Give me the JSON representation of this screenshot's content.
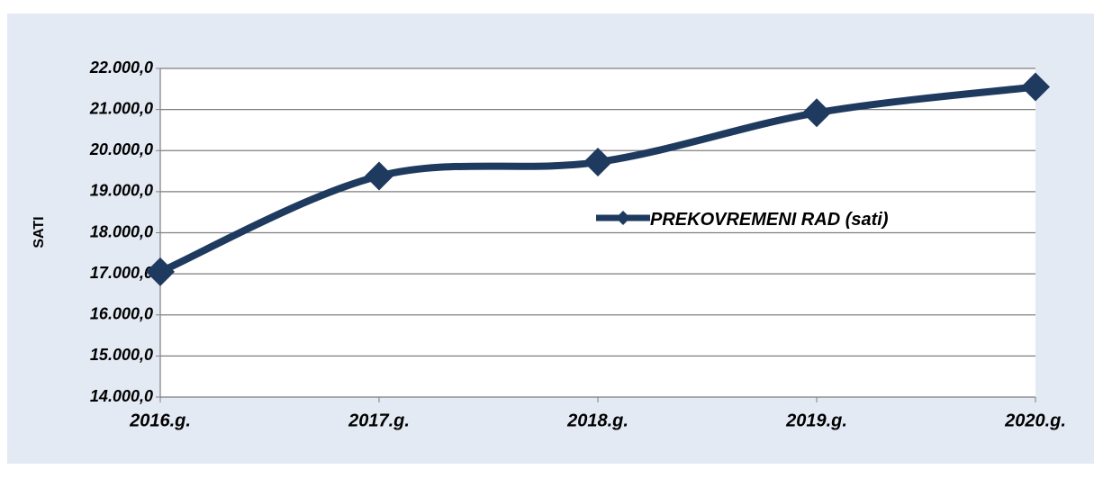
{
  "chart_data": {
    "type": "line",
    "y_label": "SATI",
    "categories": [
      "2016.g.",
      "2017.g.",
      "2018.g.",
      "2019.g.",
      "2020.g."
    ],
    "series": [
      {
        "name": "PREKOVREMENI RAD (sati)",
        "color": "#1f3a5f",
        "values": [
          17050,
          19380,
          19720,
          20920,
          21550
        ]
      }
    ],
    "ylim": [
      14000,
      22000
    ],
    "yticks": [
      {
        "value": 14000,
        "label": "14.000,0"
      },
      {
        "value": 15000,
        "label": "15.000,0"
      },
      {
        "value": 16000,
        "label": "16.000,0"
      },
      {
        "value": 17000,
        "label": "17.000,0"
      },
      {
        "value": 18000,
        "label": "18.000,0"
      },
      {
        "value": 19000,
        "label": "19.000,0"
      },
      {
        "value": 20000,
        "label": "20.000,0"
      },
      {
        "value": 21000,
        "label": "21.000,0"
      },
      {
        "value": 22000,
        "label": "22.000,0"
      }
    ],
    "grid": true,
    "smooth": true,
    "markers": "diamond"
  }
}
